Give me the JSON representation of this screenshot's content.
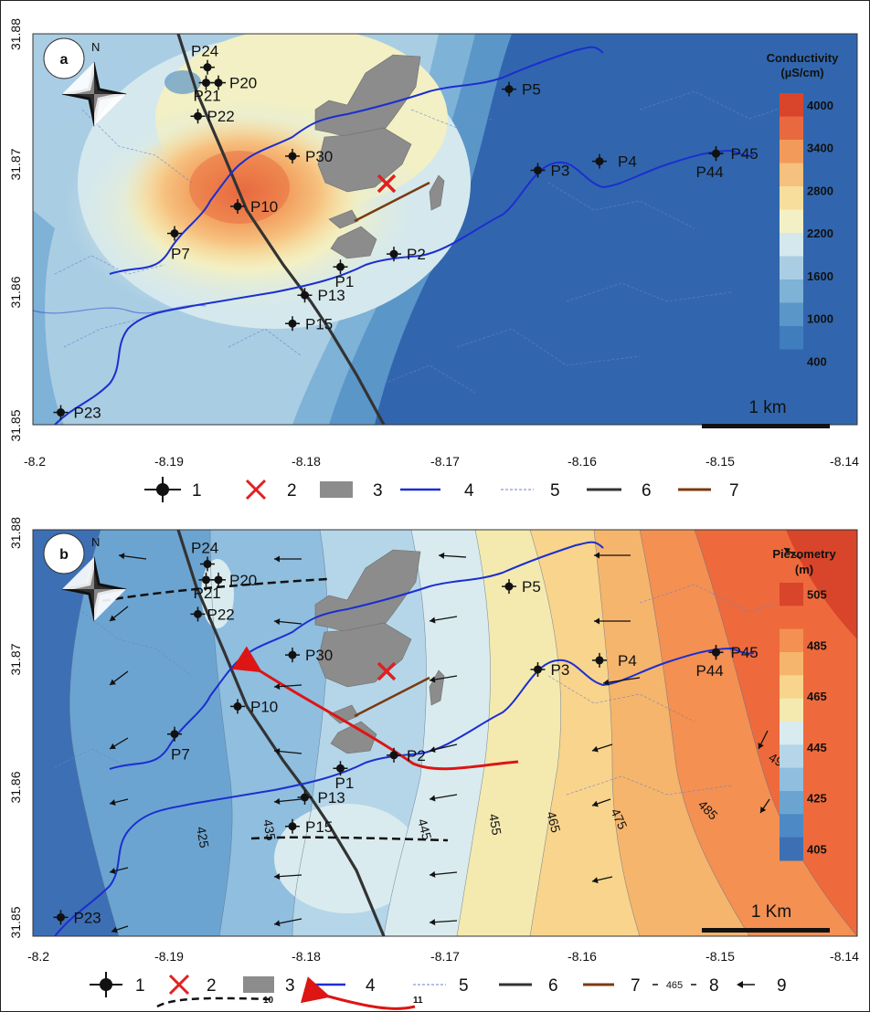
{
  "panels": [
    {
      "letter": "a",
      "north": "N",
      "colorbar": {
        "title": "Conductivity",
        "unit": "(µS/cm)",
        "ticks": [
          "4000",
          "3400",
          "2800",
          "2200",
          "1600",
          "1000",
          "400"
        ],
        "colors": [
          "#d8452a",
          "#e8693f",
          "#f29a5a",
          "#f6c07e",
          "#f8de9c",
          "#f2f0c4",
          "#d4e8ee",
          "#a9cde3",
          "#7eb2d6",
          "#5b96c9",
          "#3f7dbd",
          "#3166ae"
        ]
      },
      "scalebar": "1 km",
      "y_ticks": [
        "31.88",
        "31.87",
        "31.86",
        "31.85"
      ],
      "x_ticks": [
        "-8.2",
        "-8.19",
        "-8.18",
        "-8.17",
        "-8.16",
        "-8.15",
        "-8.14"
      ],
      "wells": [
        {
          "id": "P24",
          "lon": -8.1874,
          "lat": 31.8774
        },
        {
          "id": "P20",
          "lon": -8.1866,
          "lat": 31.8762
        },
        {
          "id": "P21",
          "lon": -8.1875,
          "lat": 31.8762
        },
        {
          "id": "P22",
          "lon": -8.1881,
          "lat": 31.8736
        },
        {
          "id": "P30",
          "lon": -8.1812,
          "lat": 31.8705
        },
        {
          "id": "P10",
          "lon": -8.1852,
          "lat": 31.8666
        },
        {
          "id": "P7",
          "lon": -8.1898,
          "lat": 31.8645
        },
        {
          "id": "P1",
          "lon": -8.1777,
          "lat": 31.8619
        },
        {
          "id": "P2",
          "lon": -8.1738,
          "lat": 31.8629
        },
        {
          "id": "P13",
          "lon": -8.1803,
          "lat": 31.8597
        },
        {
          "id": "P15",
          "lon": -8.1812,
          "lat": 31.8575
        },
        {
          "id": "P23",
          "lon": -8.1981,
          "lat": 31.8506
        },
        {
          "id": "P5",
          "lon": -8.1654,
          "lat": 31.8757
        },
        {
          "id": "P3",
          "lon": -8.1633,
          "lat": 31.8694
        },
        {
          "id": "P4",
          "lon": -8.1588,
          "lat": 31.8701
        },
        {
          "id": "P44",
          "lon": -8.1503,
          "lat": 31.8707
        },
        {
          "id": "P45",
          "lon": -8.1503,
          "lat": 31.8707
        }
      ]
    },
    {
      "letter": "b",
      "north": "N",
      "colorbar": {
        "title": "Piezometry",
        "unit": "(m)",
        "ticks": [
          "505",
          "485",
          "465",
          "445",
          "425",
          "405"
        ],
        "colors": [
          "#d8452a",
          "#ee6a3c",
          "#f49052",
          "#f6b56c",
          "#f8d48c",
          "#f4eab0",
          "#d9ebee",
          "#b5d6e8",
          "#8fbedf",
          "#6ca4d1",
          "#4d89c4",
          "#3d6fb5"
        ]
      },
      "contour_labels": [
        "425",
        "435",
        "445",
        "455",
        "465",
        "475",
        "485",
        "495"
      ],
      "scalebar": "1 Km",
      "y_ticks": [
        "31.88",
        "31.87",
        "31.86",
        "31.85"
      ],
      "x_ticks": [
        "-8.2",
        "-8.19",
        "-8.18",
        "-8.17",
        "-8.16",
        "-8.15",
        "-8.14"
      ]
    }
  ],
  "legend_a": [
    "1",
    "2",
    "3",
    "4",
    "5",
    "6",
    "7"
  ],
  "legend_b": {
    "items": [
      "1",
      "2",
      "3",
      "4",
      "5",
      "6",
      "7",
      "8",
      "9"
    ],
    "sub_labels": [
      "10",
      "11"
    ],
    "contour_sample": "465"
  },
  "colors": {
    "well": "#1a1a1a",
    "cross": "#e02020",
    "quarry": "#8c8c8c",
    "river": "#1b2fd0",
    "stream": "#6d80c8",
    "road": "#333333",
    "brown_line": "#7a3a10",
    "flow_path": "#dd1515",
    "fault": "#111111"
  }
}
